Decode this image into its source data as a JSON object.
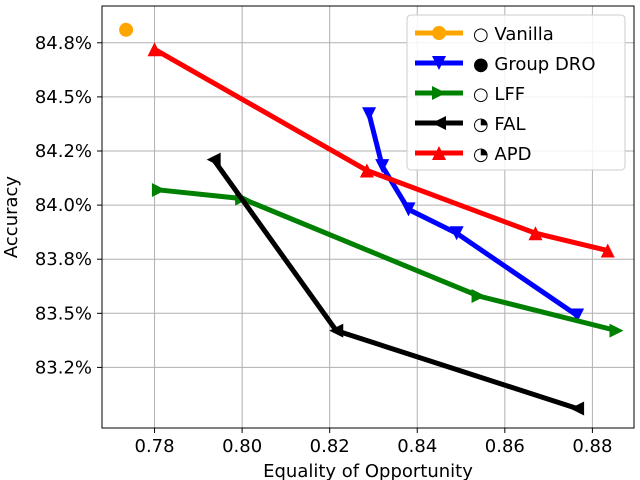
{
  "chart_data": {
    "type": "line",
    "xlabel": "Equality of Opportunity",
    "ylabel": "Accuracy",
    "xlim": [
      0.768,
      0.8895
    ],
    "ylim": [
      82.97,
      84.92
    ],
    "x_ticks": [
      0.78,
      0.8,
      0.82,
      0.84,
      0.86,
      0.88
    ],
    "x_tick_labels": [
      "0.78",
      "0.80",
      "0.82",
      "0.84",
      "0.86",
      "0.88"
    ],
    "y_ticks": [
      83.25,
      83.5,
      83.75,
      84.0,
      84.25,
      84.5,
      84.75
    ],
    "y_tick_labels": [
      "83.2%",
      "83.5%",
      "83.8%",
      "84.0%",
      "84.2%",
      "84.5%",
      "84.8%"
    ],
    "grid": true,
    "legend_position": "top-right",
    "series": [
      {
        "name": "Vanilla",
        "legend_symbol": "○",
        "color": "#ffa500",
        "marker": "circle",
        "points": [
          [
            0.7735,
            84.81
          ]
        ]
      },
      {
        "name": "Group DRO",
        "legend_symbol": "●",
        "color": "#0000ff",
        "marker": "triangle-down",
        "points": [
          [
            0.829,
            84.42
          ],
          [
            0.832,
            84.18
          ],
          [
            0.838,
            83.98
          ],
          [
            0.849,
            83.87
          ],
          [
            0.8765,
            83.49
          ]
        ]
      },
      {
        "name": "LFF",
        "legend_symbol": "○",
        "color": "#008000",
        "marker": "triangle-right",
        "points": [
          [
            0.781,
            84.07
          ],
          [
            0.8,
            84.03
          ],
          [
            0.854,
            83.58
          ],
          [
            0.8855,
            83.42
          ]
        ]
      },
      {
        "name": "FAL",
        "legend_symbol": "◔",
        "color": "#000000",
        "marker": "triangle-left",
        "points": [
          [
            0.7935,
            84.21
          ],
          [
            0.8215,
            83.42
          ],
          [
            0.8765,
            83.06
          ]
        ]
      },
      {
        "name": "APD",
        "legend_symbol": "◔",
        "color": "#ff0000",
        "marker": "triangle-up",
        "points": [
          [
            0.78,
            84.72
          ],
          [
            0.8285,
            84.16
          ],
          [
            0.867,
            83.87
          ],
          [
            0.8835,
            83.79
          ]
        ]
      }
    ]
  }
}
